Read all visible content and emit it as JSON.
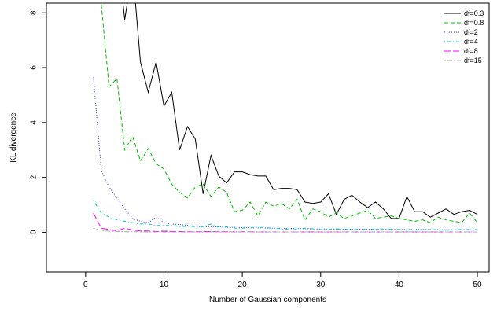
{
  "chart_data": {
    "type": "line",
    "title": "",
    "xlabel": "Number of Gaussian components",
    "ylabel": "KL divergence",
    "xlim": [
      -5,
      51.5
    ],
    "ylim": [
      -1.45,
      8.35
    ],
    "xticks": [
      0,
      10,
      20,
      30,
      40,
      50
    ],
    "yticks": [
      0,
      2,
      4,
      6,
      8
    ],
    "grid": false,
    "legend_position": "top-right",
    "series": [
      {
        "name": "df=0.3",
        "color": "#000000",
        "dash": "solid",
        "x": [
          2,
          3,
          4,
          5,
          6,
          7,
          8,
          9,
          10,
          11,
          12,
          13,
          14,
          15,
          16,
          17,
          18,
          19,
          20,
          21,
          22,
          23,
          24,
          25,
          26,
          27,
          28,
          29,
          30,
          31,
          32,
          33,
          34,
          35,
          36,
          37,
          38,
          39,
          40,
          41,
          42,
          43,
          44,
          45,
          46,
          47,
          48,
          49,
          50
        ],
        "values": [
          9.2,
          9.6,
          10.4,
          7.75,
          9.6,
          6.2,
          5.1,
          6.2,
          4.6,
          5.1,
          3.0,
          3.85,
          3.4,
          1.4,
          2.8,
          2.05,
          1.8,
          2.2,
          2.2,
          2.1,
          2.05,
          2.05,
          1.55,
          1.6,
          1.6,
          1.55,
          1.1,
          1.05,
          1.1,
          1.4,
          0.65,
          1.2,
          1.35,
          1.1,
          0.9,
          1.1,
          0.85,
          0.5,
          0.5,
          1.3,
          0.75,
          0.75,
          0.55,
          0.7,
          0.85,
          0.65,
          0.75,
          0.8,
          0.65
        ]
      },
      {
        "name": "df=0.8",
        "color": "#00bb00",
        "dash": "dashed",
        "x": [
          2,
          3,
          4,
          5,
          6,
          7,
          8,
          9,
          10,
          11,
          12,
          13,
          14,
          15,
          16,
          17,
          18,
          19,
          20,
          21,
          22,
          23,
          24,
          25,
          26,
          27,
          28,
          29,
          30,
          31,
          32,
          33,
          34,
          35,
          36,
          37,
          38,
          39,
          40,
          41,
          42,
          43,
          44,
          45,
          46,
          47,
          48,
          49,
          50
        ],
        "values": [
          8.3,
          5.3,
          5.6,
          3.0,
          3.5,
          2.6,
          3.05,
          2.5,
          2.3,
          1.75,
          1.45,
          1.25,
          1.65,
          1.75,
          1.3,
          1.65,
          1.45,
          0.75,
          0.8,
          1.1,
          0.6,
          1.1,
          0.95,
          1.05,
          0.85,
          1.2,
          0.45,
          0.85,
          0.75,
          0.55,
          0.7,
          0.5,
          0.6,
          0.7,
          0.8,
          0.5,
          0.55,
          0.6,
          0.5,
          0.45,
          0.4,
          0.45,
          0.35,
          0.55,
          0.45,
          0.4,
          0.35,
          0.7,
          0.35
        ]
      },
      {
        "name": "df=2",
        "color": "#3333ff",
        "dash": "dotted",
        "x": [
          1,
          2,
          3,
          4,
          5,
          6,
          7,
          8,
          9,
          10,
          11,
          12,
          13,
          14,
          15,
          16,
          17,
          18,
          19,
          20,
          22,
          24,
          26,
          28,
          30,
          32,
          34,
          36,
          38,
          40,
          42,
          44,
          46,
          48,
          50
        ],
        "values": [
          5.65,
          2.25,
          1.65,
          1.25,
          0.85,
          0.5,
          0.4,
          0.35,
          0.55,
          0.35,
          0.3,
          0.28,
          0.25,
          0.22,
          0.2,
          0.2,
          0.2,
          0.18,
          0.18,
          0.17,
          0.16,
          0.15,
          0.14,
          0.13,
          0.12,
          0.12,
          0.11,
          0.11,
          0.1,
          0.1,
          0.1,
          0.1,
          0.09,
          0.09,
          0.09
        ]
      },
      {
        "name": "df=4",
        "color": "#00cccc",
        "dash": "dotdash",
        "x": [
          1,
          2,
          3,
          4,
          5,
          6,
          7,
          8,
          9,
          10,
          11,
          12,
          13,
          14,
          15,
          16,
          17,
          18,
          19,
          20,
          22,
          24,
          26,
          28,
          30,
          32,
          34,
          36,
          38,
          40,
          42,
          44,
          46,
          48,
          50
        ],
        "values": [
          1.15,
          0.7,
          0.55,
          0.45,
          0.4,
          0.35,
          0.3,
          0.3,
          0.25,
          0.25,
          0.25,
          0.2,
          0.22,
          0.2,
          0.2,
          0.3,
          0.18,
          0.2,
          0.15,
          0.15,
          0.18,
          0.15,
          0.1,
          0.15,
          0.1,
          0.12,
          0.1,
          0.1,
          0.12,
          0.1,
          0.08,
          0.1,
          0.08,
          0.1,
          0.1
        ]
      },
      {
        "name": "df=8",
        "color": "#ff00ff",
        "dash": "longdash",
        "x": [
          1,
          2,
          3,
          4,
          5,
          6,
          7,
          8,
          9,
          10,
          11,
          12,
          13,
          14,
          15,
          16,
          17,
          18,
          19,
          20,
          22,
          24,
          26,
          28,
          30,
          32,
          34,
          36,
          38,
          40,
          42,
          44,
          46,
          48,
          50
        ],
        "values": [
          0.7,
          0.15,
          0.1,
          0.05,
          0.15,
          0.08,
          0.05,
          0.05,
          0.03,
          0.04,
          0.03,
          0.03,
          0.02,
          0.02,
          0.02,
          0.03,
          0.02,
          0.02,
          0.01,
          0.02,
          0.01,
          0.01,
          0.01,
          0.01,
          0.01,
          0.01,
          0.01,
          0.01,
          0.01,
          0.01,
          0.01,
          0.01,
          0.01,
          0.01,
          0.01
        ]
      },
      {
        "name": "df=15",
        "color": "#aaaaaa",
        "dash": "twodash",
        "x": [
          1,
          2,
          3,
          4,
          5,
          6,
          7,
          8,
          9,
          10,
          12,
          14,
          16,
          18,
          20,
          25,
          30,
          35,
          40,
          45,
          50
        ],
        "values": [
          0.15,
          0.06,
          0.04,
          0.03,
          0.02,
          0.02,
          0.01,
          0.01,
          0.01,
          0.01,
          0.01,
          0.01,
          0.01,
          0.01,
          0.01,
          0.01,
          0.01,
          0.01,
          0.01,
          0.01,
          0.01
        ]
      }
    ]
  }
}
